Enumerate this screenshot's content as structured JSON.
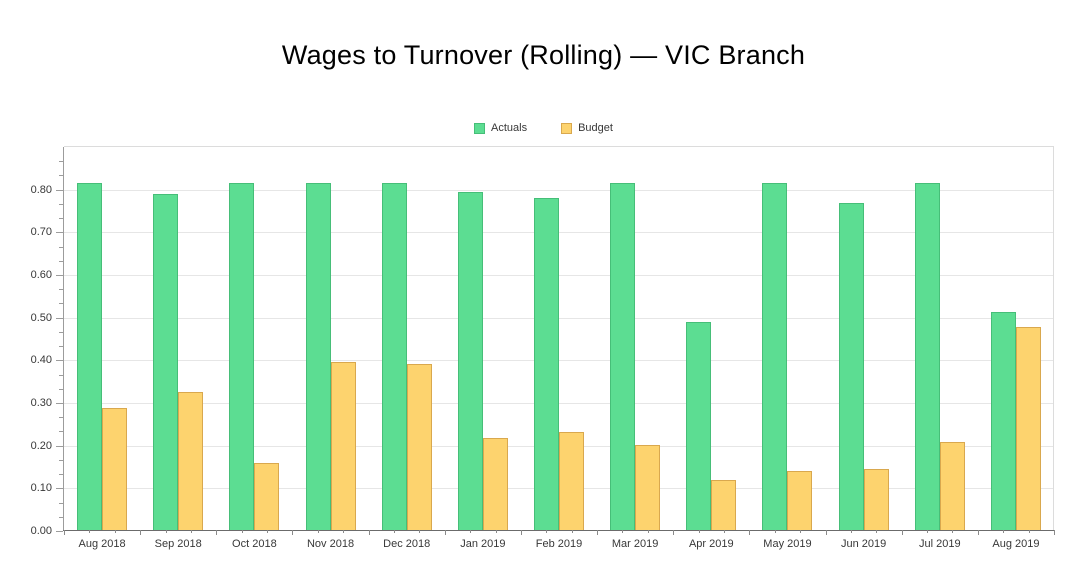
{
  "chart": {
    "title": "Wages to Turnover (Rolling) — VIC Branch"
  },
  "chart_data": {
    "type": "bar",
    "title": "Wages to Turnover (Rolling) — VIC Branch",
    "categories": [
      "Aug 2018",
      "Sep 2018",
      "Oct 2018",
      "Nov 2018",
      "Dec 2018",
      "Jan 2019",
      "Feb 2019",
      "Mar 2019",
      "Apr 2019",
      "May 2019",
      "Jun 2019",
      "Jul 2019",
      "Aug 2019"
    ],
    "series": [
      {
        "name": "Actuals",
        "color": "#5cdd92",
        "border_color": "#46be78",
        "values": [
          0.813,
          0.788,
          0.813,
          0.813,
          0.813,
          0.792,
          0.777,
          0.813,
          0.488,
          0.813,
          0.767,
          0.813,
          0.511
        ]
      },
      {
        "name": "Budget",
        "color": "#fdd36e",
        "border_color": "#d9a84e",
        "values": [
          0.286,
          0.323,
          0.158,
          0.394,
          0.39,
          0.215,
          0.229,
          0.199,
          0.117,
          0.139,
          0.144,
          0.207,
          0.475
        ]
      }
    ],
    "xlabel": "",
    "ylabel": "",
    "ylim": [
      0,
      0.9
    ],
    "y_ticks": [
      "0.00",
      "0.10",
      "0.20",
      "0.30",
      "0.40",
      "0.50",
      "0.60",
      "0.70",
      "0.80"
    ],
    "y_tick_step": 0.1,
    "grid": true,
    "legend_position": "top-center",
    "colors": {
      "gridline": "#e6e6e6",
      "plot_border": "#dcdcdc",
      "y_axis_line": "#9c9c9c",
      "x_axis_line": "#6b6b6b",
      "label_text": "#383838",
      "title_text": "#000000"
    }
  }
}
